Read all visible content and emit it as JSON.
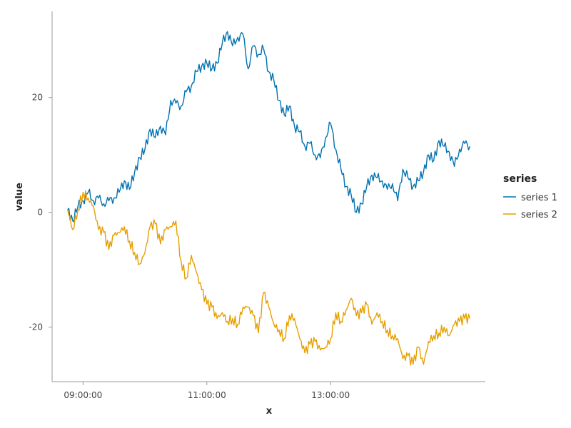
{
  "chart_data": {
    "type": "line",
    "xlabel": "x",
    "ylabel": "value",
    "x_ticks": [
      "09:00:00",
      "11:00:00",
      "13:00:00"
    ],
    "y_ticks": [
      20,
      0,
      -20
    ],
    "xlim": [
      "08:30:00",
      "15:30:00"
    ],
    "ylim": [
      -29.5,
      35
    ],
    "grid": false,
    "legend": {
      "title": "series",
      "placement": "right"
    },
    "series": [
      {
        "name": "series 1",
        "color": "#0072B2",
        "points": [
          [
            "08:45",
            0.5
          ],
          [
            "08:50",
            -1.5
          ],
          [
            "08:55",
            1.0
          ],
          [
            "09:00",
            2.0
          ],
          [
            "09:05",
            3.5
          ],
          [
            "09:10",
            2.0
          ],
          [
            "09:15",
            2.5
          ],
          [
            "09:20",
            1.5
          ],
          [
            "09:25",
            2.0
          ],
          [
            "09:30",
            2.5
          ],
          [
            "09:35",
            3.5
          ],
          [
            "09:40",
            5.5
          ],
          [
            "09:45",
            4.0
          ],
          [
            "09:50",
            7.0
          ],
          [
            "09:55",
            9.5
          ],
          [
            "10:00",
            11.0
          ],
          [
            "10:05",
            14.5
          ],
          [
            "10:10",
            13.0
          ],
          [
            "10:15",
            15.0
          ],
          [
            "10:20",
            13.5
          ],
          [
            "10:25",
            19.5
          ],
          [
            "10:30",
            19.0
          ],
          [
            "10:35",
            18.5
          ],
          [
            "10:40",
            21.0
          ],
          [
            "10:45",
            22.0
          ],
          [
            "10:50",
            24.5
          ],
          [
            "10:55",
            25.5
          ],
          [
            "11:00",
            26.0
          ],
          [
            "11:05",
            25.0
          ],
          [
            "11:10",
            26.0
          ],
          [
            "11:15",
            29.5
          ],
          [
            "11:20",
            31.5
          ],
          [
            "11:25",
            29.0
          ],
          [
            "11:30",
            30.5
          ],
          [
            "11:35",
            31.0
          ],
          [
            "11:40",
            25.0
          ],
          [
            "11:45",
            29.0
          ],
          [
            "11:50",
            27.5
          ],
          [
            "11:55",
            28.5
          ],
          [
            "12:00",
            24.5
          ],
          [
            "12:05",
            23.0
          ],
          [
            "12:10",
            19.5
          ],
          [
            "12:15",
            17.0
          ],
          [
            "12:20",
            18.5
          ],
          [
            "12:25",
            15.0
          ],
          [
            "12:30",
            14.0
          ],
          [
            "12:35",
            11.5
          ],
          [
            "12:40",
            12.0
          ],
          [
            "12:45",
            10.0
          ],
          [
            "12:50",
            9.5
          ],
          [
            "12:55",
            13.0
          ],
          [
            "13:00",
            15.5
          ],
          [
            "13:05",
            11.0
          ],
          [
            "13:10",
            7.5
          ],
          [
            "13:15",
            4.5
          ],
          [
            "13:20",
            3.0
          ],
          [
            "13:25",
            0.0
          ],
          [
            "13:30",
            1.5
          ],
          [
            "13:35",
            4.5
          ],
          [
            "13:40",
            6.5
          ],
          [
            "13:45",
            6.0
          ],
          [
            "13:50",
            5.5
          ],
          [
            "13:55",
            4.0
          ],
          [
            "14:00",
            5.0
          ],
          [
            "14:05",
            2.0
          ],
          [
            "14:10",
            7.5
          ],
          [
            "14:15",
            6.0
          ],
          [
            "14:20",
            4.5
          ],
          [
            "14:25",
            5.5
          ],
          [
            "14:30",
            7.0
          ],
          [
            "14:35",
            10.0
          ],
          [
            "14:40",
            9.0
          ],
          [
            "14:45",
            12.5
          ],
          [
            "14:50",
            11.5
          ],
          [
            "14:55",
            10.5
          ],
          [
            "15:00",
            8.0
          ],
          [
            "15:05",
            11.0
          ],
          [
            "15:10",
            12.0
          ],
          [
            "15:15",
            11.5
          ]
        ]
      },
      {
        "name": "series 2",
        "color": "#E69F00",
        "points": [
          [
            "08:45",
            0.5
          ],
          [
            "08:50",
            -3.0
          ],
          [
            "08:55",
            0.5
          ],
          [
            "09:00",
            3.5
          ],
          [
            "09:05",
            2.5
          ],
          [
            "09:10",
            1.0
          ],
          [
            "09:15",
            -3.0
          ],
          [
            "09:20",
            -3.5
          ],
          [
            "09:25",
            -6.5
          ],
          [
            "09:30",
            -4.0
          ],
          [
            "09:35",
            -3.5
          ],
          [
            "09:40",
            -2.5
          ],
          [
            "09:45",
            -5.0
          ],
          [
            "09:50",
            -7.0
          ],
          [
            "09:55",
            -9.0
          ],
          [
            "10:00",
            -7.0
          ],
          [
            "10:05",
            -2.5
          ],
          [
            "10:10",
            -2.0
          ],
          [
            "10:15",
            -5.5
          ],
          [
            "10:20",
            -3.0
          ],
          [
            "10:25",
            -2.5
          ],
          [
            "10:30",
            -1.5
          ],
          [
            "10:35",
            -8.5
          ],
          [
            "10:40",
            -11.5
          ],
          [
            "10:45",
            -7.5
          ],
          [
            "10:50",
            -10.5
          ],
          [
            "10:55",
            -13.5
          ],
          [
            "11:00",
            -16.0
          ],
          [
            "11:05",
            -16.5
          ],
          [
            "11:10",
            -18.5
          ],
          [
            "11:15",
            -17.5
          ],
          [
            "11:20",
            -19.0
          ],
          [
            "11:25",
            -18.5
          ],
          [
            "11:30",
            -19.5
          ],
          [
            "11:35",
            -16.5
          ],
          [
            "11:40",
            -16.5
          ],
          [
            "11:45",
            -18.0
          ],
          [
            "11:50",
            -21.0
          ],
          [
            "11:55",
            -14.0
          ],
          [
            "12:00",
            -16.5
          ],
          [
            "12:05",
            -19.5
          ],
          [
            "12:10",
            -20.5
          ],
          [
            "12:15",
            -22.0
          ],
          [
            "12:20",
            -18.0
          ],
          [
            "12:25",
            -18.5
          ],
          [
            "12:30",
            -22.0
          ],
          [
            "12:35",
            -24.5
          ],
          [
            "12:40",
            -23.0
          ],
          [
            "12:45",
            -22.5
          ],
          [
            "12:50",
            -24.0
          ],
          [
            "12:55",
            -23.5
          ],
          [
            "13:00",
            -22.0
          ],
          [
            "13:05",
            -17.5
          ],
          [
            "13:10",
            -19.0
          ],
          [
            "13:15",
            -17.0
          ],
          [
            "13:20",
            -15.0
          ],
          [
            "13:25",
            -18.0
          ],
          [
            "13:30",
            -17.5
          ],
          [
            "13:35",
            -16.0
          ],
          [
            "13:40",
            -19.5
          ],
          [
            "13:45",
            -17.5
          ],
          [
            "13:50",
            -19.0
          ],
          [
            "13:55",
            -20.5
          ],
          [
            "14:00",
            -21.5
          ],
          [
            "14:05",
            -22.0
          ],
          [
            "14:10",
            -25.5
          ],
          [
            "14:15",
            -25.0
          ],
          [
            "14:20",
            -26.5
          ],
          [
            "14:25",
            -23.5
          ],
          [
            "14:30",
            -26.5
          ],
          [
            "14:35",
            -22.5
          ],
          [
            "14:40",
            -21.5
          ],
          [
            "14:45",
            -21.0
          ],
          [
            "14:50",
            -20.0
          ],
          [
            "14:55",
            -21.5
          ],
          [
            "15:00",
            -19.5
          ],
          [
            "15:05",
            -19.0
          ],
          [
            "15:10",
            -18.5
          ],
          [
            "15:15",
            -18.5
          ]
        ]
      }
    ]
  }
}
